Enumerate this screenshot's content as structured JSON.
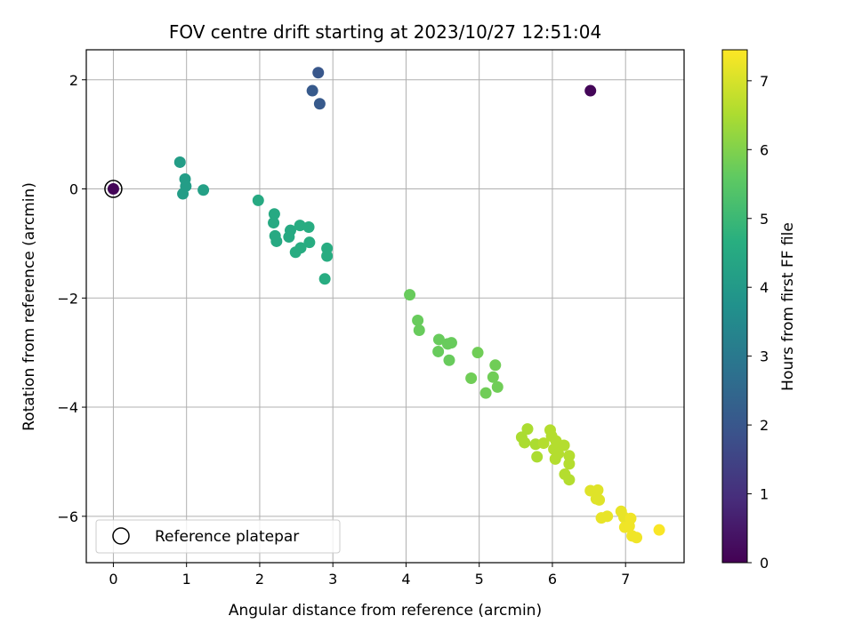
{
  "chart_data": {
    "type": "scatter",
    "title": "FOV centre drift starting at 2023/10/27 12:51:04",
    "xlabel": "Angular distance from reference (arcmin)",
    "ylabel": "Rotation from reference (arcmin)",
    "xlim": [
      -0.37,
      7.8
    ],
    "ylim": [
      -6.85,
      2.55
    ],
    "xticks": [
      0,
      1,
      2,
      3,
      4,
      5,
      6,
      7
    ],
    "xtick_labels": [
      "0",
      "1",
      "2",
      "3",
      "4",
      "5",
      "6",
      "7"
    ],
    "yticks": [
      2,
      0,
      -2,
      -4,
      -6
    ],
    "ytick_labels": [
      "2",
      "0",
      "−2",
      "−4",
      "−6"
    ],
    "grid": true,
    "colorbar": {
      "label": "Hours from first FF file",
      "colormap": "viridis",
      "range": [
        0,
        7.45
      ],
      "ticks": [
        0,
        1,
        2,
        3,
        4,
        5,
        6,
        7
      ],
      "tick_labels": [
        "0",
        "1",
        "2",
        "3",
        "4",
        "5",
        "6",
        "7"
      ]
    },
    "legend": {
      "position": "lower-left",
      "entries": [
        "Reference platepar"
      ]
    },
    "reference_marker": {
      "x": 0,
      "y": 0,
      "label": "Reference platepar"
    },
    "series": [
      {
        "points": [
          [
            0,
            0,
            0.1
          ],
          [
            6.52,
            1.8,
            0.1
          ],
          [
            2.8,
            2.13,
            2.0
          ],
          [
            2.72,
            1.8,
            2.1
          ],
          [
            2.82,
            1.56,
            2.1
          ],
          [
            0.91,
            0.49,
            4.1
          ],
          [
            0.98,
            0.18,
            4.1
          ],
          [
            0.99,
            0.05,
            4.1
          ],
          [
            0.95,
            -0.09,
            4.1
          ],
          [
            1.23,
            -0.02,
            4.2
          ],
          [
            1.98,
            -0.21,
            4.5
          ],
          [
            2.2,
            -0.46,
            4.5
          ],
          [
            2.19,
            -0.62,
            4.5
          ],
          [
            2.21,
            -0.86,
            4.5
          ],
          [
            2.23,
            -0.96,
            4.5
          ],
          [
            2.42,
            -0.76,
            4.5
          ],
          [
            2.4,
            -0.88,
            4.5
          ],
          [
            2.55,
            -0.67,
            4.6
          ],
          [
            2.67,
            -0.7,
            4.6
          ],
          [
            2.68,
            -0.98,
            4.6
          ],
          [
            2.56,
            -1.08,
            4.6
          ],
          [
            2.49,
            -1.16,
            4.6
          ],
          [
            2.92,
            -1.09,
            4.6
          ],
          [
            2.92,
            -1.23,
            4.6
          ],
          [
            2.89,
            -1.65,
            4.6
          ],
          [
            4.05,
            -1.94,
            5.7
          ],
          [
            4.16,
            -2.41,
            5.7
          ],
          [
            4.18,
            -2.59,
            5.7
          ],
          [
            4.45,
            -2.76,
            5.7
          ],
          [
            4.44,
            -2.98,
            5.7
          ],
          [
            4.57,
            -2.84,
            5.7
          ],
          [
            4.62,
            -2.82,
            5.7
          ],
          [
            4.59,
            -3.14,
            5.7
          ],
          [
            4.98,
            -3.0,
            5.8
          ],
          [
            4.89,
            -3.47,
            5.8
          ],
          [
            5.09,
            -3.74,
            5.8
          ],
          [
            5.19,
            -3.45,
            5.8
          ],
          [
            5.22,
            -3.23,
            5.8
          ],
          [
            5.25,
            -3.63,
            5.8
          ],
          [
            5.66,
            -4.4,
            6.5
          ],
          [
            5.58,
            -4.55,
            6.5
          ],
          [
            5.62,
            -4.65,
            6.5
          ],
          [
            5.77,
            -4.68,
            6.5
          ],
          [
            5.79,
            -4.91,
            6.5
          ],
          [
            5.88,
            -4.66,
            6.6
          ],
          [
            5.97,
            -4.42,
            6.6
          ],
          [
            5.99,
            -4.53,
            6.6
          ],
          [
            6.05,
            -4.62,
            6.6
          ],
          [
            6.02,
            -4.77,
            6.6
          ],
          [
            6.04,
            -4.95,
            6.6
          ],
          [
            6.08,
            -4.85,
            6.6
          ],
          [
            6.16,
            -4.7,
            6.6
          ],
          [
            6.23,
            -4.89,
            6.6
          ],
          [
            6.23,
            -5.04,
            6.6
          ],
          [
            6.17,
            -5.23,
            6.6
          ],
          [
            6.23,
            -5.33,
            6.6
          ],
          [
            6.52,
            -5.53,
            7.1
          ],
          [
            6.62,
            -5.52,
            7.1
          ],
          [
            6.6,
            -5.68,
            7.1
          ],
          [
            6.64,
            -5.7,
            7.1
          ],
          [
            6.67,
            -6.03,
            7.2
          ],
          [
            6.75,
            -6.0,
            7.2
          ],
          [
            6.94,
            -5.91,
            7.2
          ],
          [
            6.98,
            -6.02,
            7.2
          ],
          [
            7.07,
            -6.04,
            7.3
          ],
          [
            6.99,
            -6.2,
            7.3
          ],
          [
            7.05,
            -6.18,
            7.3
          ],
          [
            7.09,
            -6.36,
            7.3
          ],
          [
            7.15,
            -6.39,
            7.3
          ],
          [
            7.46,
            -6.25,
            7.4
          ]
        ]
      }
    ]
  }
}
